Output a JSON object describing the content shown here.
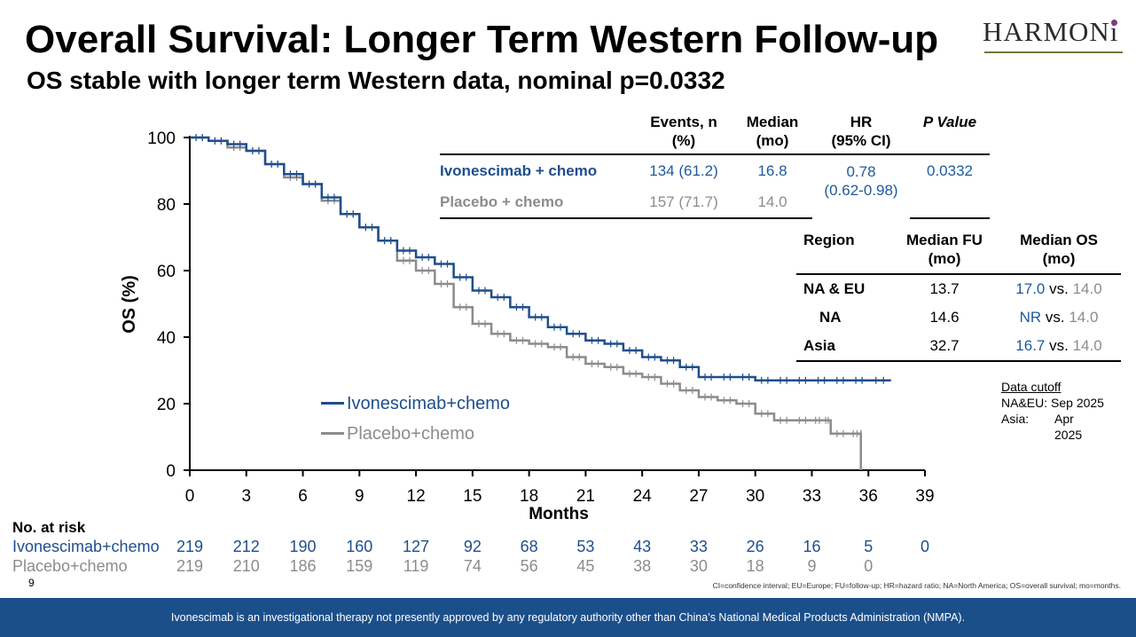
{
  "title": "Overall Survival: Longer Term Western Follow-up",
  "subtitle": "OS stable with longer term Western data, nominal p=0.0332",
  "logo": {
    "text": "HARMONi"
  },
  "colors": {
    "ivonescimab": "#1f4e8c",
    "placebo": "#8c8c8c",
    "banner": "#1b4f8a"
  },
  "stats_table": {
    "headers": [
      "Events, n\n(%)",
      "Median\n(mo)",
      "HR\n(95% CI)",
      "P Value"
    ],
    "rows": [
      {
        "arm": "Ivonescimab + chemo",
        "events": "134 (61.2)",
        "median": "16.8",
        "hr": "0.78",
        "hr_ci": "(0.62-0.98)",
        "p": "0.0332"
      },
      {
        "arm": "Placebo + chemo",
        "events": "157 (71.7)",
        "median": "14.0"
      }
    ]
  },
  "region_table": {
    "headers": [
      "Region",
      "Median FU\n(mo)",
      "Median OS\n(mo)"
    ],
    "vs": "vs.",
    "rows": [
      {
        "region": "NA & EU",
        "fu": "13.7",
        "os_ivo": "17.0",
        "os_pbo": "14.0"
      },
      {
        "region": "NA",
        "fu": "14.6",
        "os_ivo": "NR",
        "os_pbo": "14.0"
      },
      {
        "region": "Asia",
        "fu": "32.7",
        "os_ivo": "16.7",
        "os_pbo": "14.0"
      }
    ]
  },
  "data_cutoff": {
    "title": "Data cutoff",
    "naeu": "NA&EU: Sep 2025",
    "asia_label": "Asia:",
    "asia_value": "Apr 2025"
  },
  "chart_data": {
    "type": "line",
    "title": "",
    "xlabel": "Months",
    "ylabel": "OS (%)",
    "xlim": [
      0,
      39
    ],
    "ylim": [
      0,
      100
    ],
    "xticks": [
      0,
      3,
      6,
      9,
      12,
      15,
      18,
      21,
      24,
      27,
      30,
      33,
      36,
      39
    ],
    "yticks": [
      0,
      20,
      40,
      60,
      80,
      100
    ],
    "legend": "middle-left",
    "series": [
      {
        "name": "Ivonescimab+chemo",
        "step": true,
        "x": [
          0,
          1,
          2,
          3,
          4,
          5,
          6,
          7,
          8,
          9,
          10,
          11,
          12,
          13,
          14,
          15,
          16,
          17,
          18,
          19,
          20,
          21,
          22,
          23,
          24,
          25,
          26,
          27,
          28,
          29,
          30,
          31,
          32,
          33,
          34,
          35,
          36,
          37.2
        ],
        "y": [
          100,
          99,
          98,
          96,
          92,
          89,
          86,
          82,
          77,
          73,
          69,
          66,
          64,
          62,
          58,
          54,
          52,
          49,
          46,
          43,
          41,
          39,
          38,
          36,
          34,
          33,
          31,
          28,
          28,
          28,
          27,
          27,
          27,
          27,
          27,
          27,
          27,
          27
        ]
      },
      {
        "name": "Placebo+chemo",
        "step": true,
        "x": [
          0,
          1,
          2,
          3,
          4,
          5,
          6,
          7,
          8,
          9,
          10,
          11,
          12,
          13,
          14,
          15,
          16,
          17,
          18,
          19,
          20,
          21,
          22,
          23,
          24,
          25,
          26,
          27,
          28,
          29,
          30,
          31,
          32,
          33,
          33.6,
          34,
          35,
          35.6,
          35.6
        ],
        "y": [
          100,
          99,
          97,
          96,
          92,
          88,
          86,
          81,
          77,
          73,
          69,
          63,
          60,
          56,
          49,
          44,
          41,
          39,
          38,
          37,
          34,
          32,
          31,
          29,
          28,
          26,
          24,
          22,
          21,
          20,
          17,
          15,
          15,
          15,
          15,
          11,
          11,
          11,
          0
        ]
      }
    ]
  },
  "at_risk": {
    "title": "No. at risk",
    "months": [
      0,
      3,
      6,
      9,
      12,
      15,
      18,
      21,
      24,
      27,
      30,
      33,
      36,
      39
    ],
    "rows": [
      {
        "label": "Ivonescimab+chemo",
        "values": [
          "219",
          "212",
          "190",
          "160",
          "127",
          "92",
          "68",
          "53",
          "43",
          "33",
          "26",
          "16",
          "5",
          "0"
        ]
      },
      {
        "label": "Placebo+chemo",
        "values": [
          "219",
          "210",
          "186",
          "159",
          "119",
          "74",
          "56",
          "45",
          "38",
          "30",
          "18",
          "9",
          "0"
        ]
      }
    ]
  },
  "page_number": "9",
  "footnote": "CI=confidence interval; EU=Europe; FU=follow-up; HR=hazard ratio; NA=North America; OS=overall survival; mo=months.",
  "banner": "Ivonescimab is an investigational therapy not presently approved by any regulatory authority other than China’s National Medical Products Administration (NMPA)."
}
